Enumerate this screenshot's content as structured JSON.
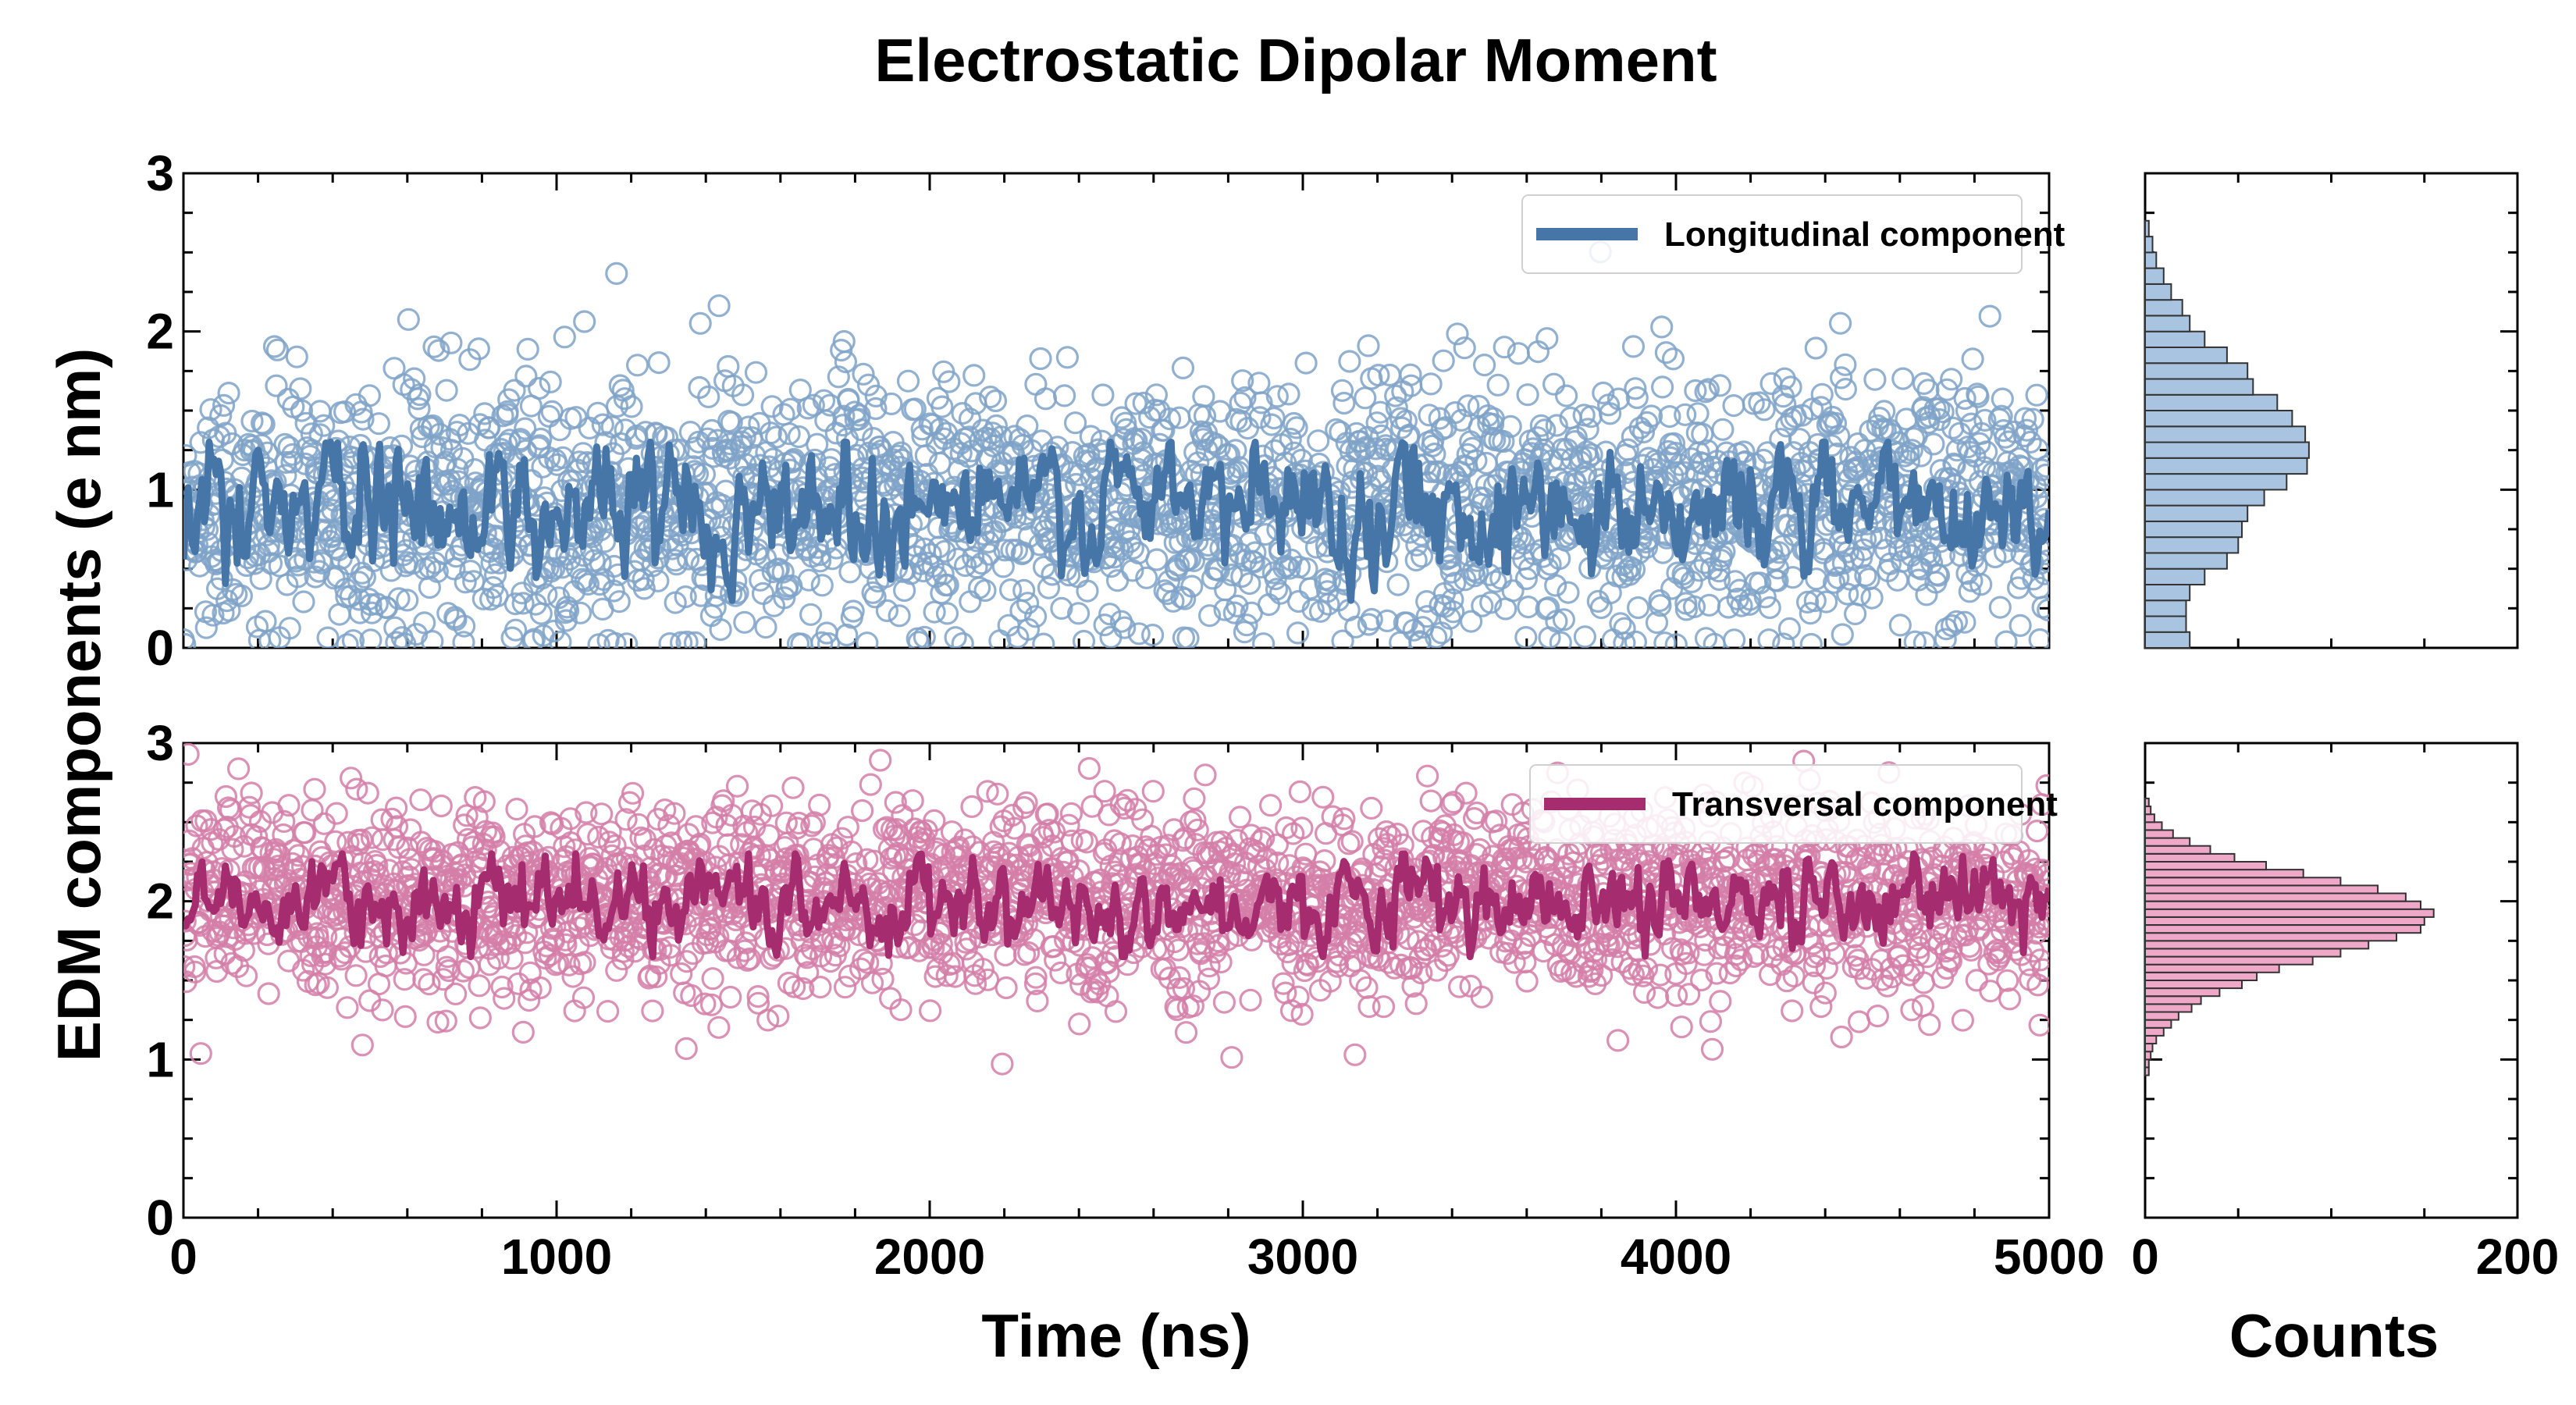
{
  "chart_data": {
    "type": "scatter",
    "title": "Electrostatic Dipolar Moment",
    "ylabel": "EDM components (e nm)",
    "xlabel": "Time (ns)",
    "hist_xlabel": "Counts",
    "xlim": [
      0,
      5000
    ],
    "x_ticks": [
      "0",
      "1000",
      "2000",
      "3000",
      "4000",
      "5000"
    ],
    "hist_xlim": [
      0,
      200
    ],
    "hist_x_ticks": [
      "0",
      "200"
    ],
    "ylim": [
      0,
      3
    ],
    "y_ticks": [
      "0",
      "1",
      "2",
      "3"
    ],
    "n_points": 2500,
    "series": [
      {
        "name": "Longitudinal component",
        "color": "#4675a8",
        "marker_color": "#7fa3c8",
        "hist_fill": "#a9c4e0",
        "mean": 0.9,
        "sd_scatter": 0.42,
        "running_mean_range": [
          0.3,
          1.3
        ],
        "histogram": {
          "bin_start": 0.0,
          "bin_width": 0.1,
          "counts": [
            24,
            22,
            22,
            24,
            32,
            44,
            50,
            52,
            55,
            64,
            76,
            87,
            88,
            86,
            79,
            71,
            58,
            55,
            44,
            32,
            24,
            20,
            14,
            10,
            6,
            4,
            2
          ]
        }
      },
      {
        "name": "Transversal component",
        "color": "#a52c6e",
        "marker_color": "#d47ea8",
        "hist_fill": "#f0a8c8",
        "mean": 2.0,
        "sd_scatter": 0.3,
        "running_mean_range": [
          1.65,
          2.3
        ],
        "histogram": {
          "bin_start": 0.9,
          "bin_width": 0.05,
          "counts": [
            2,
            2,
            3,
            4,
            6,
            10,
            14,
            18,
            25,
            30,
            40,
            52,
            60,
            72,
            90,
            105,
            120,
            135,
            148,
            150,
            155,
            148,
            140,
            125,
            105,
            85,
            65,
            48,
            35,
            24,
            15,
            9,
            5,
            3,
            2
          ]
        }
      }
    ]
  }
}
